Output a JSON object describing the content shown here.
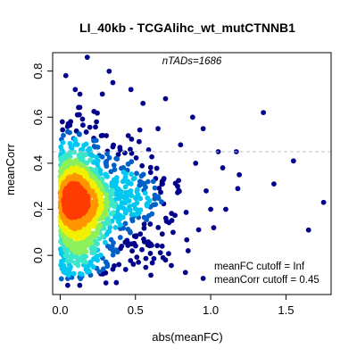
{
  "chart_data": {
    "type": "scatter",
    "title": "LI_40kb - TCGAlihc_wt_mutCTNNB1",
    "xlabel": "abs(meanFC)",
    "ylabel": "meanCorr",
    "xlim": [
      -0.05,
      1.8
    ],
    "ylim": [
      -0.17,
      0.88
    ],
    "xticks": [
      0.0,
      0.5,
      1.0,
      1.5
    ],
    "yticks": [
      0.0,
      0.2,
      0.4,
      0.6,
      0.8
    ],
    "x_tick_labels": [
      "0.0",
      "0.5",
      "1.0",
      "1.5"
    ],
    "y_tick_labels": [
      "0.0",
      "0.2",
      "0.4",
      "0.6",
      "0.8"
    ],
    "grid": false,
    "annotation_top": "nTADs=1686",
    "cutoff_fc_label": "meanFC cutoff = Inf",
    "cutoff_corr_label": "meanCorr cutoff = 0.45",
    "cutoff_corr_value": 0.45,
    "density_colors": [
      "#00008b",
      "#0060c8",
      "#00c8f0",
      "#3ce6c8",
      "#8cf05a",
      "#f0f000",
      "#ff9600",
      "#ff3c00"
    ],
    "outliers": [
      {
        "x": 0.18,
        "y": 0.86
      },
      {
        "x": 1.35,
        "y": 0.62
      },
      {
        "x": 1.55,
        "y": 0.41
      },
      {
        "x": 1.75,
        "y": 0.23
      },
      {
        "x": 1.65,
        "y": 0.11
      },
      {
        "x": 1.42,
        "y": 0.31
      },
      {
        "x": 1.18,
        "y": 0.29
      },
      {
        "x": 1.19,
        "y": 0.35
      },
      {
        "x": 1.17,
        "y": 0.45
      },
      {
        "x": 0.95,
        "y": -0.1
      },
      {
        "x": 0.27,
        "y": -0.08
      },
      {
        "x": 0.05,
        "y": -0.13
      },
      {
        "x": 0.13,
        "y": -0.13
      },
      {
        "x": 0.35,
        "y": -0.06
      },
      {
        "x": 0.22,
        "y": -0.05
      },
      {
        "x": 0.7,
        "y": -0.02
      },
      {
        "x": 0.85,
        "y": 0.02
      },
      {
        "x": 1.02,
        "y": 0.12
      },
      {
        "x": 1.1,
        "y": 0.2
      },
      {
        "x": 0.95,
        "y": 0.55
      },
      {
        "x": 1.05,
        "y": 0.45
      },
      {
        "x": 0.88,
        "y": 0.6
      },
      {
        "x": 0.7,
        "y": 0.68
      },
      {
        "x": 0.35,
        "y": 0.75
      },
      {
        "x": 0.55,
        "y": 0.66
      },
      {
        "x": 0.47,
        "y": 0.72
      },
      {
        "x": 0.1,
        "y": 0.72
      },
      {
        "x": 0.28,
        "y": 0.7
      },
      {
        "x": 1.08,
        "y": 0.38
      },
      {
        "x": 0.97,
        "y": 0.28
      },
      {
        "x": 0.6,
        "y": 0.05
      },
      {
        "x": 0.75,
        "y": 0.1
      },
      {
        "x": 0.52,
        "y": -0.03
      },
      {
        "x": 0.18,
        "y": -0.06
      },
      {
        "x": 0.39,
        "y": -0.04
      },
      {
        "x": 0.8,
        "y": 0.48
      },
      {
        "x": 0.65,
        "y": 0.55
      },
      {
        "x": 0.9,
        "y": 0.4
      },
      {
        "x": 0.78,
        "y": 0.3
      },
      {
        "x": 1.0,
        "y": 0.2
      }
    ]
  }
}
